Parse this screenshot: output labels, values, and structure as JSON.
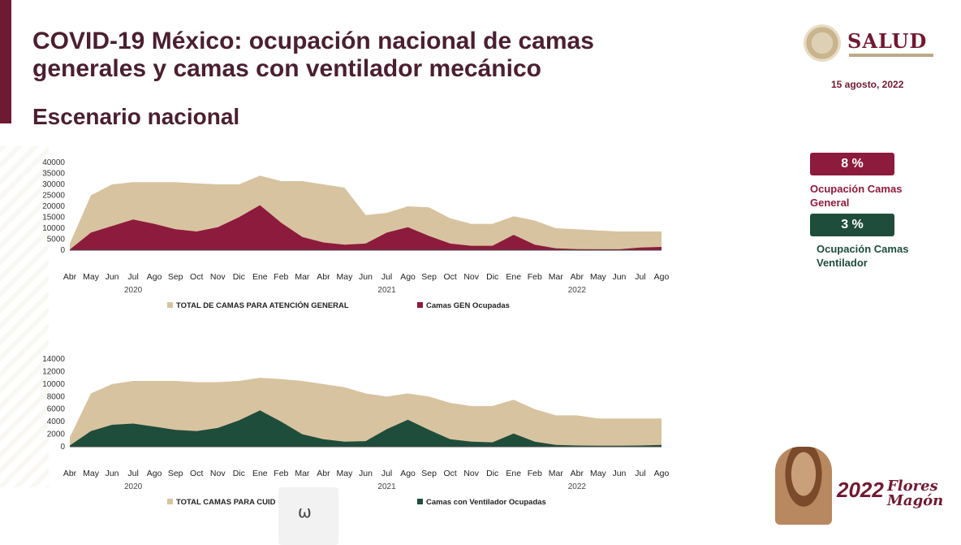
{
  "header": {
    "title": "COVID-19 México: ocupación nacional de camas generales y camas con ventilador mecánico",
    "subtitle": "Escenario nacional",
    "logo_text": "SALUD",
    "date": "15 agosto, 2022"
  },
  "indicators": {
    "general": {
      "value": "8 %",
      "label": "Ocupación Camas General"
    },
    "ventilador": {
      "value": "3 %",
      "label": "Ocupación Camas Ventilador"
    }
  },
  "colors": {
    "total_area": "#d8c3a0",
    "gen_occupied": "#8d1b3d",
    "vent_occupied": "#1f4d3b",
    "text_dark": "#4a2030"
  },
  "month_labels": [
    "Abr",
    "May",
    "Jun",
    "Jul",
    "Ago",
    "Sep",
    "Oct",
    "Nov",
    "Dic",
    "Ene",
    "Feb",
    "Mar",
    "Abr",
    "May",
    "Jun",
    "Jul",
    "Ago",
    "Sep",
    "Oct",
    "Nov",
    "Dic",
    "Ene",
    "Feb",
    "Mar",
    "Abr",
    "May",
    "Jun",
    "Jul",
    "Ago"
  ],
  "chart_data": [
    {
      "type": "area",
      "x": [
        "2020-04",
        "2020-05",
        "2020-06",
        "2020-07",
        "2020-08",
        "2020-09",
        "2020-10",
        "2020-11",
        "2020-12",
        "2021-01",
        "2021-02",
        "2021-03",
        "2021-04",
        "2021-05",
        "2021-06",
        "2021-07",
        "2021-08",
        "2021-09",
        "2021-10",
        "2021-11",
        "2021-12",
        "2022-01",
        "2022-02",
        "2022-03",
        "2022-04",
        "2022-05",
        "2022-06",
        "2022-07",
        "2022-08"
      ],
      "year_labels": [
        "2020",
        "2021",
        "2022"
      ],
      "ylim": [
        0,
        40000
      ],
      "yticks": [
        0,
        5000,
        10000,
        15000,
        20000,
        25000,
        30000,
        35000,
        40000
      ],
      "series": [
        {
          "name": "TOTAL DE CAMAS PARA ATENCIÓN GENERAL",
          "values": [
            3000,
            25000,
            30000,
            31000,
            31000,
            31000,
            30500,
            30000,
            30000,
            34000,
            31500,
            31500,
            30000,
            28500,
            16000,
            17000,
            20000,
            19500,
            14500,
            12000,
            12000,
            15500,
            13500,
            10000,
            9500,
            9000,
            8500,
            8500,
            8500
          ]
        },
        {
          "name": "Camas GEN Ocupadas",
          "values": [
            300,
            8000,
            11000,
            14000,
            12000,
            9500,
            8500,
            10500,
            15000,
            20500,
            12500,
            6000,
            3500,
            2500,
            3000,
            8000,
            10500,
            6500,
            3000,
            2000,
            2000,
            7000,
            2500,
            800,
            500,
            400,
            400,
            1200,
            1500
          ]
        }
      ]
    },
    {
      "type": "area",
      "x": [
        "2020-04",
        "2020-05",
        "2020-06",
        "2020-07",
        "2020-08",
        "2020-09",
        "2020-10",
        "2020-11",
        "2020-12",
        "2021-01",
        "2021-02",
        "2021-03",
        "2021-04",
        "2021-05",
        "2021-06",
        "2021-07",
        "2021-08",
        "2021-09",
        "2021-10",
        "2021-11",
        "2021-12",
        "2022-01",
        "2022-02",
        "2022-03",
        "2022-04",
        "2022-05",
        "2022-06",
        "2022-07",
        "2022-08"
      ],
      "year_labels": [
        "2020",
        "2021",
        "2022"
      ],
      "ylim": [
        0,
        14000
      ],
      "yticks": [
        0,
        2000,
        4000,
        6000,
        8000,
        10000,
        12000,
        14000
      ],
      "series": [
        {
          "name": "TOTAL CAMAS PARA CUID … COS",
          "values": [
            1500,
            8500,
            10000,
            10500,
            10500,
            10500,
            10300,
            10300,
            10500,
            11000,
            10800,
            10500,
            10000,
            9500,
            8500,
            8000,
            8500,
            8000,
            7000,
            6500,
            6500,
            7500,
            6000,
            5000,
            5000,
            4500,
            4500,
            4500,
            4500
          ]
        },
        {
          "name": "Camas con Ventilador Ocupadas",
          "values": [
            200,
            2500,
            3500,
            3700,
            3200,
            2700,
            2500,
            3000,
            4200,
            5800,
            4000,
            2000,
            1200,
            800,
            900,
            2800,
            4300,
            2700,
            1200,
            800,
            700,
            2100,
            800,
            300,
            200,
            150,
            150,
            200,
            300
          ]
        }
      ]
    }
  ]
}
